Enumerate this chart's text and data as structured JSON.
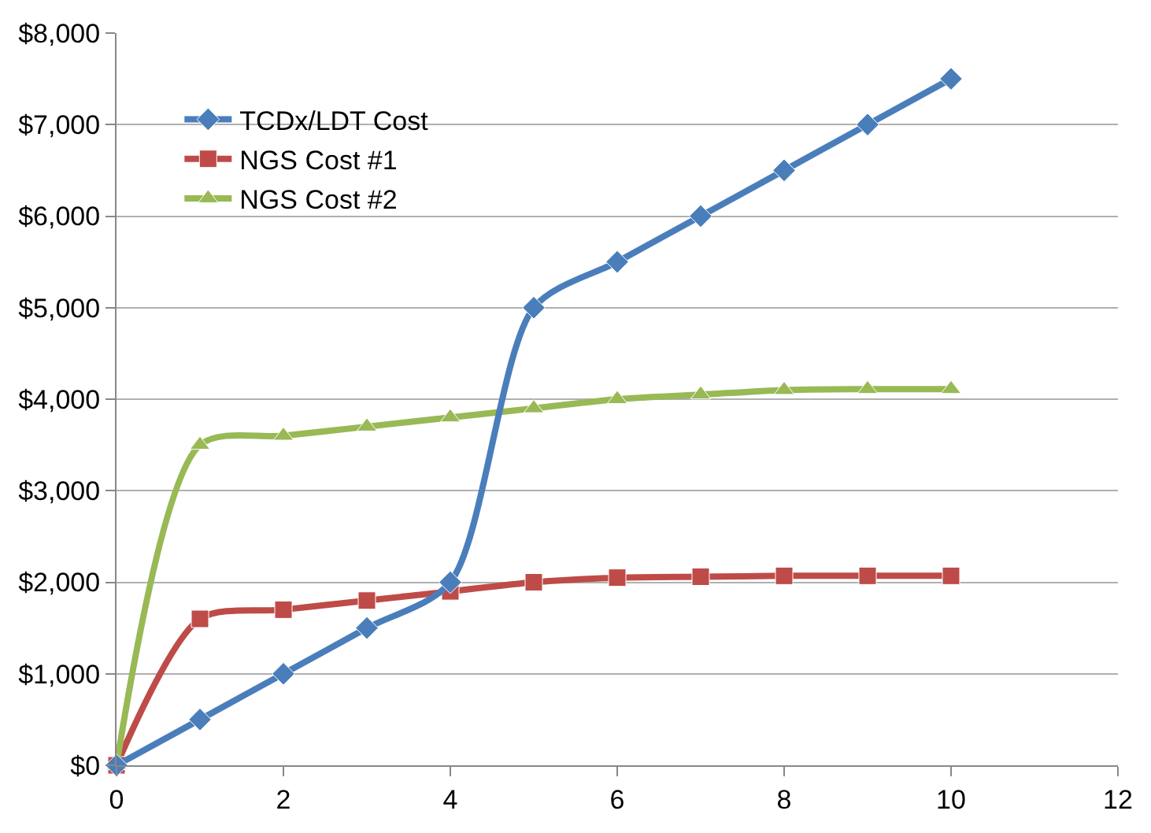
{
  "chart_data": {
    "type": "line",
    "x": [
      0,
      1,
      2,
      3,
      4,
      5,
      6,
      7,
      8,
      9,
      10
    ],
    "series": [
      {
        "name": "TCDx/LDT Cost",
        "color": "#4a7ebb",
        "marker": "diamond",
        "values": [
          0,
          500,
          1000,
          1500,
          2000,
          5000,
          5500,
          6000,
          6500,
          7000,
          7500
        ]
      },
      {
        "name": "NGS Cost #1",
        "color": "#be4b48",
        "marker": "square",
        "values": [
          0,
          1600,
          1700,
          1800,
          1900,
          2000,
          2050,
          2060,
          2070,
          2070,
          2070
        ]
      },
      {
        "name": "NGS Cost #2",
        "color": "#98b954",
        "marker": "triangle",
        "values": [
          0,
          3500,
          3600,
          3700,
          3800,
          3900,
          4000,
          4050,
          4100,
          4110,
          4110
        ]
      }
    ],
    "xlim": [
      0,
      12
    ],
    "xticks": [
      0,
      2,
      4,
      6,
      8,
      10,
      12
    ],
    "ylim": [
      0,
      8000
    ],
    "yticks": [
      {
        "value": 0,
        "label": "$0"
      },
      {
        "value": 1000,
        "label": "$1,000"
      },
      {
        "value": 2000,
        "label": "$2,000"
      },
      {
        "value": 3000,
        "label": "$3,000"
      },
      {
        "value": 4000,
        "label": "$4,000"
      },
      {
        "value": 5000,
        "label": "$5,000"
      },
      {
        "value": 6000,
        "label": "$6,000"
      },
      {
        "value": 7000,
        "label": "$7,000"
      },
      {
        "value": 8000,
        "label": "$8,000"
      }
    ],
    "grid": "y",
    "legend": "top left",
    "line_style": "solid"
  }
}
